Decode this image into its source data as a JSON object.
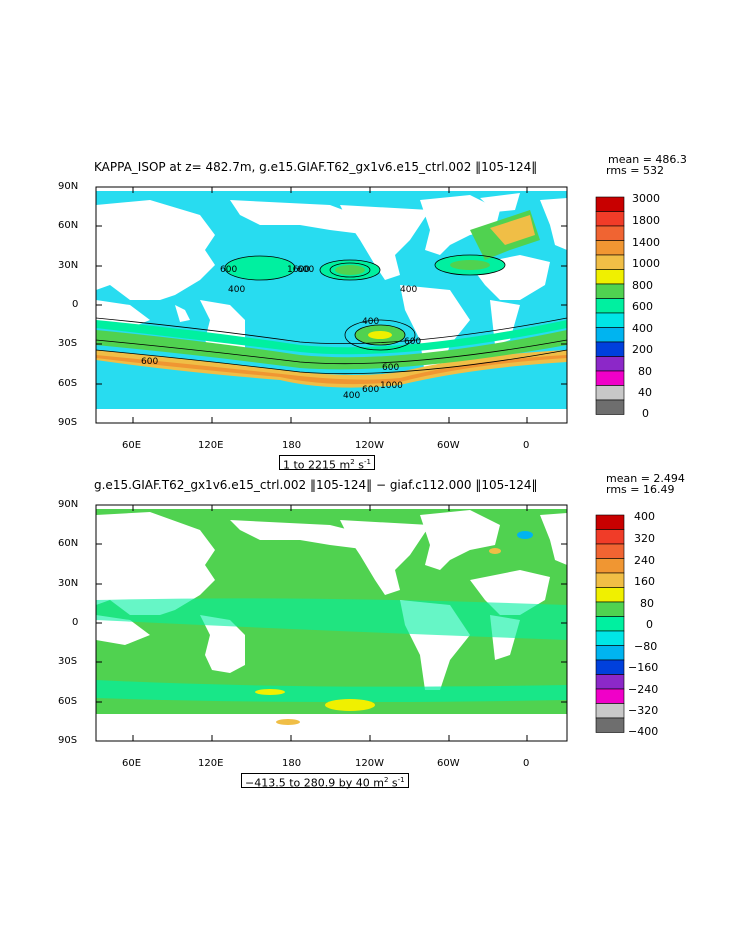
{
  "panels": [
    {
      "title": "KAPPA_ISOP at z= 482.7m, g.e15.GIAF.T62_gx1v6.e15_ctrl.002 ‖105-124‖",
      "mean": "mean = 486.3",
      "rms": "rms = 532",
      "range_label_prefix": "1 to 2215 m",
      "range_label_units": "2 s",
      "range_label_exp": "-1",
      "colorbar_labels": [
        "3000",
        "1800",
        "1400",
        "1000",
        "800",
        "600",
        "400",
        "200",
        "80",
        "40",
        "0"
      ],
      "colorbar_colors": [
        "#c80000",
        "#f03c28",
        "#f06432",
        "#f09632",
        "#f0be46",
        "#f0f000",
        "#50d250",
        "#00f0a0",
        "#00e6e6",
        "#00b4f0",
        "#0040dc",
        "#8c28c8",
        "#f000c8",
        "#c8c8c8",
        "#6e6e6e"
      ],
      "contour_labels": [
        "600",
        "1600",
        "600",
        "400",
        "400",
        "600",
        "600",
        "600",
        "400",
        "600",
        "1000",
        "400",
        "600",
        "600",
        "600"
      ]
    },
    {
      "title": "g.e15.GIAF.T62_gx1v6.e15_ctrl.002 ‖105-124‖ − giaf.c112.000 ‖105-124‖",
      "mean": "mean = 2.494",
      "rms": "rms = 16.49",
      "range_label_prefix": "−413.5 to 280.9 by 40 m",
      "range_label_units": "2 s",
      "range_label_exp": "-1",
      "colorbar_labels": [
        "400",
        "320",
        "240",
        "160",
        "80",
        "0",
        "−80",
        "−160",
        "−240",
        "−320",
        "−400"
      ],
      "colorbar_colors": [
        "#c80000",
        "#f03c28",
        "#f06432",
        "#f09632",
        "#f0be46",
        "#f0f000",
        "#50d250",
        "#00f0a0",
        "#00e6e6",
        "#00b4f0",
        "#0040dc",
        "#8c28c8",
        "#f000c8",
        "#c8c8c8",
        "#6e6e6e"
      ]
    }
  ],
  "lat_ticks": [
    "90N",
    "60N",
    "30N",
    "0",
    "30S",
    "60S",
    "90S"
  ],
  "lon_ticks": [
    "60E",
    "120E",
    "180",
    "120W",
    "60W",
    "0"
  ]
}
